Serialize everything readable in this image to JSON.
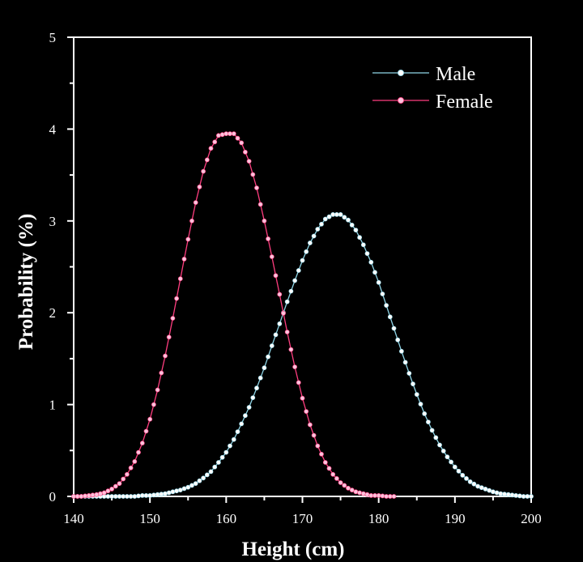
{
  "chart_data": {
    "type": "line",
    "title": "",
    "xlabel": "Height (cm)",
    "ylabel": "Probability (%)",
    "xlim": [
      140,
      200
    ],
    "ylim": [
      0,
      5
    ],
    "xticks": [
      140,
      150,
      160,
      170,
      180,
      190,
      200
    ],
    "yticks": [
      0,
      1,
      2,
      3,
      4,
      5
    ],
    "legend": "top-right",
    "grid": false,
    "background": "#000000",
    "axis_color": "#ffffff",
    "series": [
      {
        "name": "Male",
        "color": "#8fd6e8",
        "marker_color": "#ffffff",
        "x": [
          140,
          141,
          142,
          143,
          144,
          145,
          146,
          147,
          148,
          149,
          150,
          151,
          152,
          153,
          154,
          155,
          156,
          157,
          158,
          159,
          160,
          161,
          162,
          163,
          164,
          165,
          166,
          167,
          168,
          169,
          170,
          171,
          172,
          173,
          174,
          175,
          176,
          177,
          178,
          179,
          180,
          181,
          182,
          183,
          184,
          185,
          186,
          187,
          188,
          189,
          190,
          191,
          192,
          193,
          194,
          195,
          196,
          197,
          198,
          199,
          200
        ],
        "y": [
          0.0,
          0.0,
          0.0,
          0.0,
          0.0,
          0.0,
          0.0,
          0.0,
          0.0,
          0.01,
          0.01,
          0.02,
          0.03,
          0.05,
          0.07,
          0.1,
          0.14,
          0.2,
          0.27,
          0.37,
          0.48,
          0.62,
          0.79,
          0.97,
          1.18,
          1.4,
          1.64,
          1.88,
          2.12,
          2.35,
          2.57,
          2.76,
          2.91,
          3.02,
          3.07,
          3.07,
          3.01,
          2.9,
          2.74,
          2.55,
          2.33,
          2.08,
          1.83,
          1.58,
          1.34,
          1.11,
          0.9,
          0.72,
          0.56,
          0.43,
          0.32,
          0.23,
          0.16,
          0.11,
          0.08,
          0.05,
          0.03,
          0.02,
          0.01,
          0.0,
          0.0
        ]
      },
      {
        "name": "Female",
        "color": "#ff3d7f",
        "marker_color": "#ffc2dc",
        "x": [
          140,
          141,
          142,
          143,
          144,
          145,
          146,
          147,
          148,
          149,
          150,
          151,
          152,
          153,
          154,
          155,
          156,
          157,
          158,
          159,
          160,
          161,
          162,
          163,
          164,
          165,
          166,
          167,
          168,
          169,
          170,
          171,
          172,
          173,
          174,
          175,
          176,
          177,
          178,
          179,
          180,
          181,
          182
        ],
        "y": [
          0.0,
          0.0,
          0.01,
          0.02,
          0.04,
          0.08,
          0.14,
          0.24,
          0.38,
          0.58,
          0.84,
          1.16,
          1.53,
          1.94,
          2.37,
          2.8,
          3.2,
          3.54,
          3.79,
          3.93,
          3.95,
          3.95,
          3.85,
          3.65,
          3.36,
          3.0,
          2.61,
          2.2,
          1.79,
          1.41,
          1.07,
          0.78,
          0.55,
          0.37,
          0.24,
          0.15,
          0.09,
          0.05,
          0.03,
          0.01,
          0.01,
          0.0,
          0.0
        ]
      }
    ]
  }
}
